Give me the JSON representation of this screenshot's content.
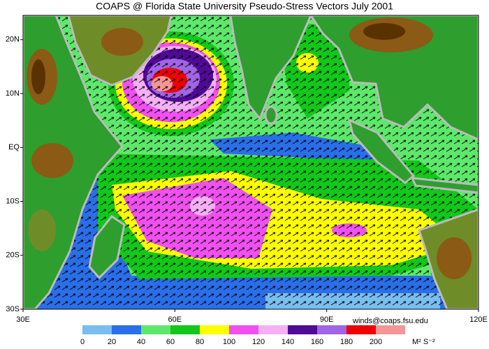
{
  "title": "COAPS @ Florida State University Pseudo-Stress Vectors July 2001",
  "map": {
    "xlim": [
      30,
      120
    ],
    "ylim": [
      -30,
      24.5
    ],
    "xticks": [
      {
        "value": 30,
        "label": "30E"
      },
      {
        "value": 60,
        "label": "60E"
      },
      {
        "value": 90,
        "label": "90E"
      },
      {
        "value": 120,
        "label": "120E"
      }
    ],
    "yticks": [
      {
        "value": 20,
        "label": "20N"
      },
      {
        "value": 10,
        "label": "10N"
      },
      {
        "value": 0,
        "label": "EQ"
      },
      {
        "value": -10,
        "label": "10S"
      },
      {
        "value": -20,
        "label": "20S"
      },
      {
        "value": -30,
        "label": "30S"
      }
    ]
  },
  "colorbar": {
    "levels": [
      0,
      20,
      40,
      60,
      80,
      100,
      120,
      140,
      160,
      180,
      200
    ],
    "colors": [
      "#78bef0",
      "#2a6ee8",
      "#5ee86b",
      "#12c81a",
      "#ffff00",
      "#f050f0",
      "#f5b0f5",
      "#500a96",
      "#a064e6",
      "#f00000",
      "#f59696"
    ],
    "units": "M² S⁻²"
  },
  "contact": "winds@coaps.fsu.edu"
}
